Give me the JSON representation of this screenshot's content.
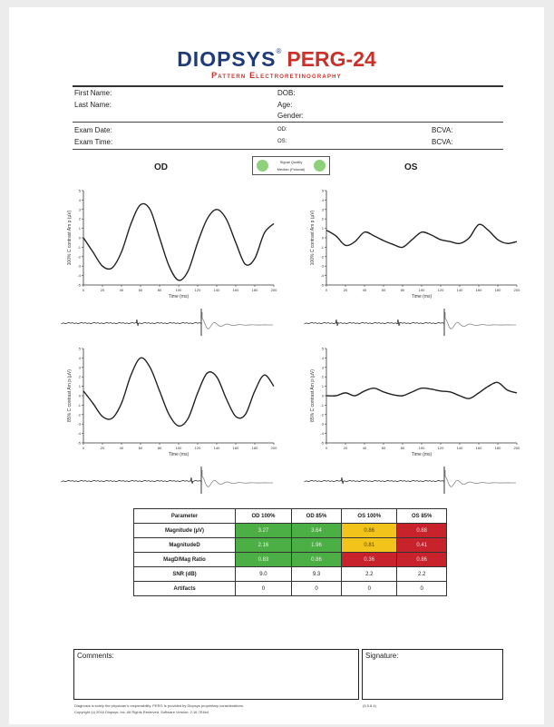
{
  "header": {
    "brand": "DIOPSYS",
    "reg": "®",
    "product": "PERG-24",
    "subtitle": "Pattern Electroretinography"
  },
  "patient": {
    "first_name_label": "First Name:",
    "last_name_label": "Last Name:",
    "dob_label": "DOB:",
    "age_label": "Age:",
    "gender_label": "Gender:"
  },
  "exam": {
    "date_label": "Exam Date:",
    "time_label": "Exam Time:",
    "date_od": "OD:",
    "date_os": "OS:",
    "bcva_label_1": "BCVA:",
    "bcva_label_2": "BCVA:"
  },
  "signal_quality": {
    "line1": "Signal Quality",
    "line2": "Median (Fiducial)"
  },
  "eyes": {
    "od": "OD",
    "os": "OS"
  },
  "plots": {
    "ylabel_100": "100% C contrast Am p (µV)",
    "ylabel_85": "85% C contrast Am p (µV)",
    "xlabel": "Time (ms)",
    "x_ticks": [
      "0",
      "20",
      "40",
      "60",
      "80",
      "100",
      "120",
      "140",
      "160",
      "180",
      "200"
    ],
    "y_ticks": [
      "-5",
      "-4",
      "-3",
      "-2",
      "-1",
      "0",
      "1",
      "2",
      "3",
      "4",
      "5"
    ]
  },
  "chart_data": [
    {
      "type": "line",
      "eye": "OD",
      "contrast": "100%",
      "xlabel": "Time (ms)",
      "ylabel": "100% C contrast Am p (µV)",
      "xlim": [
        0,
        200
      ],
      "ylim": [
        -5,
        5
      ],
      "x": [
        0,
        10,
        20,
        30,
        40,
        50,
        60,
        70,
        80,
        90,
        100,
        110,
        120,
        130,
        140,
        150,
        160,
        170,
        180,
        190,
        200
      ],
      "y": [
        0.0,
        -1.5,
        -3.0,
        -3.2,
        -1.5,
        1.5,
        3.5,
        3.0,
        0.0,
        -3.0,
        -4.5,
        -3.5,
        -0.5,
        2.0,
        3.0,
        2.0,
        -0.5,
        -2.8,
        -2.2,
        0.5,
        1.5
      ]
    },
    {
      "type": "line",
      "eye": "OS",
      "contrast": "100%",
      "xlabel": "Time (ms)",
      "ylabel": "100% C contrast Am p (µV)",
      "xlim": [
        0,
        200
      ],
      "ylim": [
        -5,
        5
      ],
      "x": [
        0,
        10,
        20,
        30,
        40,
        50,
        60,
        70,
        80,
        90,
        100,
        110,
        120,
        130,
        140,
        150,
        160,
        170,
        180,
        190,
        200
      ],
      "y": [
        0.8,
        0.2,
        -0.8,
        -0.4,
        0.6,
        0.2,
        -0.3,
        -0.7,
        -1.0,
        -0.2,
        0.6,
        0.3,
        -0.2,
        -0.4,
        -0.6,
        0.0,
        1.4,
        0.8,
        -0.2,
        -0.6,
        -0.4
      ]
    },
    {
      "type": "line",
      "eye": "OD",
      "contrast": "85%",
      "xlabel": "Time (ms)",
      "ylabel": "85% C contrast Am p (µV)",
      "xlim": [
        0,
        200
      ],
      "ylim": [
        -5,
        5
      ],
      "x": [
        0,
        10,
        20,
        30,
        40,
        50,
        60,
        70,
        80,
        90,
        100,
        110,
        120,
        130,
        140,
        150,
        160,
        170,
        180,
        190,
        200
      ],
      "y": [
        0.5,
        -0.8,
        -2.2,
        -2.4,
        -0.8,
        2.2,
        4.0,
        3.0,
        0.5,
        -2.0,
        -3.2,
        -2.4,
        0.3,
        2.4,
        2.0,
        -0.3,
        -2.2,
        -2.0,
        0.5,
        2.2,
        1.0
      ]
    },
    {
      "type": "line",
      "eye": "OS",
      "contrast": "85%",
      "xlabel": "Time (ms)",
      "ylabel": "85% C contrast Am p (µV)",
      "xlim": [
        0,
        200
      ],
      "ylim": [
        -5,
        5
      ],
      "x": [
        0,
        10,
        20,
        30,
        40,
        50,
        60,
        70,
        80,
        90,
        100,
        110,
        120,
        130,
        140,
        150,
        160,
        170,
        180,
        190,
        200
      ],
      "y": [
        0.0,
        0.0,
        0.3,
        0.0,
        0.5,
        0.8,
        0.4,
        0.1,
        0.0,
        0.4,
        0.8,
        0.7,
        0.5,
        0.4,
        0.0,
        -0.3,
        0.3,
        1.0,
        1.4,
        0.6,
        0.3
      ]
    }
  ],
  "table": {
    "headers": [
      "Parameter",
      "OD 100%",
      "OD 85%",
      "OS 100%",
      "OS 85%"
    ],
    "rows": [
      {
        "name": "Magnitude (µV)",
        "cells": [
          "3.27",
          "3.64",
          "0.86",
          "0.88"
        ],
        "colors": [
          "green",
          "green",
          "yellow",
          "red"
        ]
      },
      {
        "name": "MagnitudeD",
        "cells": [
          "2.16",
          "1.96",
          "0.81",
          "0.41"
        ],
        "colors": [
          "green",
          "green",
          "yellow",
          "red"
        ]
      },
      {
        "name": "MagD/Mag Ratio",
        "cells": [
          "0.83",
          "0.86",
          "0.36",
          "0.86"
        ],
        "colors": [
          "green",
          "green",
          "red",
          "red"
        ]
      },
      {
        "name": "SNR (dB)",
        "cells": [
          "9.0",
          "9.3",
          "2.2",
          "2.2"
        ],
        "colors": [
          "",
          "",
          "",
          ""
        ]
      },
      {
        "name": "Artifacts",
        "cells": [
          "0",
          "0",
          "0",
          "0"
        ],
        "colors": [
          "",
          "",
          "",
          ""
        ]
      }
    ],
    "colors": {
      "green": "#4caf45",
      "yellow": "#f2c31b",
      "red": "#c8232c"
    }
  },
  "footer": {
    "comments_label": "Comments:",
    "signature_label": "Signature:",
    "disclaimer": "Diagnosis is solely the physician's responsibility. PERG is provided by Diopsys proprietary considerations.",
    "copyright": "Copyright (c) 2016 Diopsys, Inc. All Rights Reserved. Software Version: 2.16.7E4b4",
    "version": "(5.5.8.4)"
  }
}
